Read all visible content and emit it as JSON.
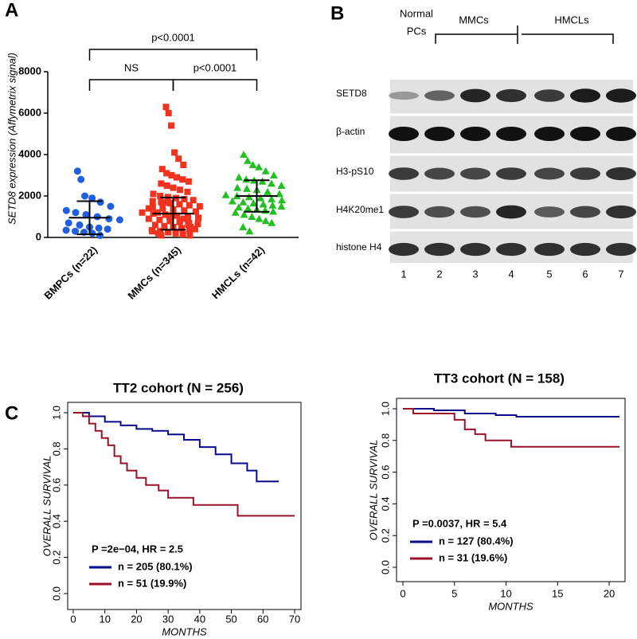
{
  "panels": [
    "A",
    "B",
    "C"
  ],
  "blot": {
    "headers": [
      "Normal",
      "PCs",
      "MMCs",
      "HMCLs"
    ],
    "rows": [
      "SETD8",
      "β-actin",
      "H3-pS10",
      "H4K20me1",
      "histone H4"
    ],
    "lanes": [
      "1",
      "2",
      "3",
      "4",
      "5",
      "6",
      "7"
    ]
  },
  "chart_data": [
    {
      "type": "strip",
      "y_label": "SETD8 expression (Affymetrix signal)",
      "categories": [
        "BMPCs (n=22)",
        "MMCs (n=345)",
        "HMCLs (n=42)"
      ],
      "colors": [
        "#1f5fe0",
        "#f0321e",
        "#22c022"
      ],
      "markers": [
        "circle",
        "square",
        "triangle"
      ],
      "values": [
        [
          3200,
          2800,
          2000,
          1900,
          1700,
          1500,
          1300,
          1200,
          1100,
          1000,
          900,
          850,
          700,
          600,
          500,
          450,
          400,
          350,
          300,
          250,
          200,
          100
        ],
        [
          6300,
          6000,
          5400,
          4100,
          3800,
          3500,
          3300,
          3100,
          3000,
          2900,
          2800,
          2700,
          2600,
          2500,
          2400,
          2300,
          2200,
          2100,
          2000,
          1950,
          1900,
          1850,
          1800,
          1750,
          1700,
          1650,
          1600,
          1550,
          1500,
          1450,
          1400,
          1350,
          1300,
          1250,
          1200,
          1150,
          1100,
          1050,
          1000,
          950,
          900,
          850,
          800,
          750,
          700,
          650,
          600,
          550,
          500,
          450,
          400,
          350,
          300,
          250,
          200,
          150,
          100,
          1400,
          1200,
          1000,
          800,
          600,
          400,
          200,
          1700,
          1300,
          900,
          500,
          300,
          100
        ],
        [
          4000,
          3700,
          3500,
          3400,
          3200,
          3000,
          2900,
          2800,
          2750,
          2700,
          2600,
          2500,
          2400,
          2350,
          2300,
          2200,
          2100,
          2050,
          2000,
          1950,
          1900,
          1850,
          1800,
          1750,
          1700,
          1650,
          1600,
          1550,
          1500,
          1450,
          1400,
          1350,
          1300,
          1250,
          1200,
          1100,
          1000,
          900,
          800,
          700,
          500,
          300
        ]
      ],
      "means": [
        950,
        1150,
        2000
      ],
      "sd": [
        800,
        780,
        760
      ],
      "ylim": [
        0,
        8000
      ],
      "yticks": [
        0,
        2000,
        4000,
        6000,
        8000
      ],
      "annotations": [
        "p<0.0001",
        "NS",
        "p<0.0001"
      ]
    },
    {
      "type": "survival",
      "title": "TT2 cohort (N = 256)",
      "x_label": "MONTHS",
      "y_label": "OVERALL SURVIVAL",
      "annotation": "P =2e−04, HR = 2.5",
      "xlim": [
        0,
        70
      ],
      "xticks": [
        0,
        10,
        20,
        30,
        40,
        50,
        60,
        70
      ],
      "ylim": [
        0,
        1
      ],
      "yticks": [
        {
          "value": 0,
          "label": "0.0"
        },
        0.2,
        0.4,
        0.6,
        0.8,
        {
          "value": 1,
          "label": "1.0"
        }
      ],
      "series": [
        {
          "name": "n = 205 (80.1%)",
          "color": "#0a0a8c",
          "x": [
            0,
            5,
            10,
            15,
            20,
            25,
            30,
            35,
            40,
            45,
            50,
            55,
            58,
            65
          ],
          "values": [
            1,
            0.98,
            0.95,
            0.93,
            0.91,
            0.9,
            0.88,
            0.85,
            0.81,
            0.77,
            0.72,
            0.68,
            0.62,
            0.62
          ]
        },
        {
          "name": "n = 51 (19.9%)",
          "color": "#9b1228",
          "x": [
            0,
            3,
            5,
            7,
            9,
            11,
            13,
            15,
            17,
            20,
            23,
            27,
            30,
            38,
            52,
            70
          ],
          "values": [
            1,
            0.98,
            0.94,
            0.9,
            0.86,
            0.82,
            0.76,
            0.72,
            0.68,
            0.64,
            0.6,
            0.57,
            0.53,
            0.49,
            0.43,
            0.43
          ]
        }
      ]
    },
    {
      "type": "survival",
      "title": "TT3 cohort (N = 158)",
      "x_label": "MONTHS",
      "y_label": "OVERALL SURVIVAL",
      "annotation": "P =0.0037, HR = 5.4",
      "xlim": [
        0,
        21
      ],
      "xticks": [
        0,
        5,
        10,
        15,
        20
      ],
      "ylim": [
        0,
        1
      ],
      "yticks": [
        {
          "value": 0,
          "label": "0.0"
        },
        0.2,
        0.4,
        0.6,
        0.8,
        {
          "value": 1,
          "label": "1.0"
        }
      ],
      "series": [
        {
          "name": "n = 127 (80.4%)",
          "color": "#0a0a8c",
          "x": [
            0,
            3,
            6,
            9,
            11,
            21
          ],
          "values": [
            1,
            0.99,
            0.97,
            0.96,
            0.95,
            0.95
          ]
        },
        {
          "name": "n = 31 (19.6%)",
          "color": "#9b1228",
          "x": [
            0,
            1,
            5,
            6,
            7,
            8,
            10.5,
            21
          ],
          "values": [
            1,
            0.97,
            0.93,
            0.87,
            0.84,
            0.8,
            0.76,
            0.76
          ]
        }
      ]
    }
  ]
}
